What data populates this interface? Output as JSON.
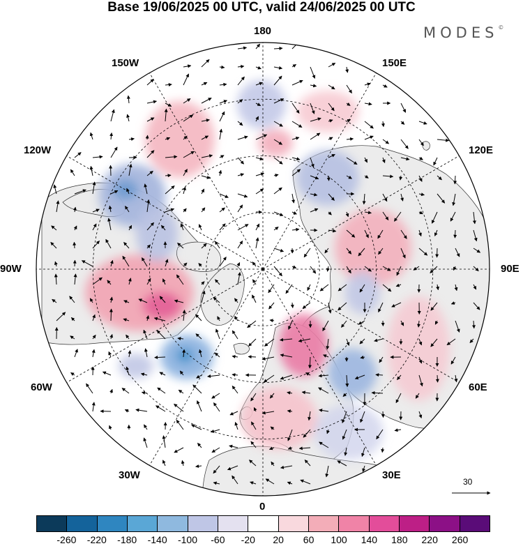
{
  "title": "Base 19/06/2025 00 UTC, valid 24/06/2025 00 UTC",
  "brand": "MODES",
  "brand_mark": "©",
  "longitude_labels": {
    "lon_180": "180",
    "lon_150w": "150W",
    "lon_150e": "150E",
    "lon_120w": "120W",
    "lon_120e": "120E",
    "lon_90w": "90W",
    "lon_90e": "90E",
    "lon_60w": "60W",
    "lon_60e": "60E",
    "lon_30w": "30W",
    "lon_30e": "30E",
    "lon_0": "0"
  },
  "reference_vector": {
    "value": "30"
  },
  "colorbar": {
    "colors": [
      "#0c3a5a",
      "#14639b",
      "#2f86c0",
      "#5aa7d6",
      "#8fb9df",
      "#bfc6e6",
      "#e4e1f0",
      "#ffffff",
      "#f9d9de",
      "#f3adb8",
      "#f083a7",
      "#e34d9a",
      "#bd1f86",
      "#8c1086",
      "#5a0c78"
    ],
    "ticks": [
      "-260",
      "-220",
      "-180",
      "-140",
      "-100",
      "-60",
      "-20",
      "20",
      "60",
      "100",
      "140",
      "180",
      "220",
      "260"
    ]
  },
  "colors": {
    "land": "#ececec",
    "ocean": "#ffffff",
    "positive_anomaly": "#f4b6c0",
    "negative_anomaly": "#b9c2e2"
  }
}
